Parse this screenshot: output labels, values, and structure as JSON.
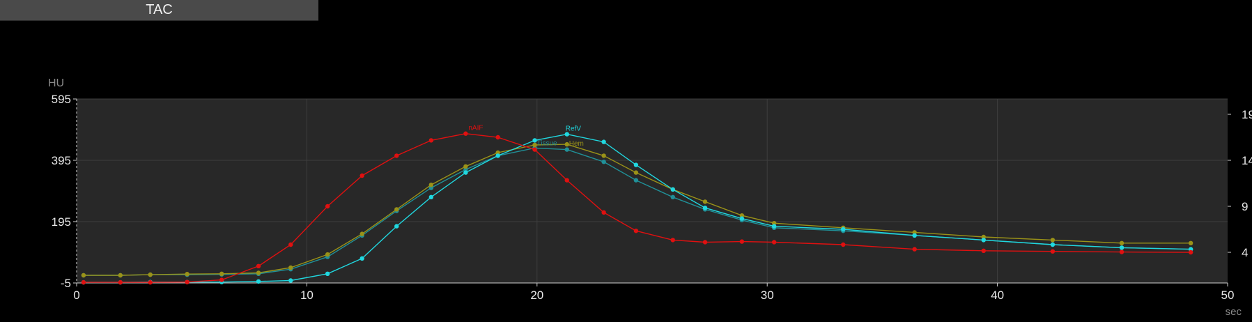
{
  "title": "TAC",
  "chart_data": {
    "type": "line",
    "xlabel": "sec",
    "ylabel": "HU",
    "xlim": [
      0,
      50
    ],
    "ylim": [
      -5,
      595
    ],
    "x_ticks": [
      0,
      10,
      20,
      30,
      40,
      50
    ],
    "y_ticks": [
      -5,
      195,
      395,
      595
    ],
    "y2_ticks": [
      "4",
      "9",
      "14",
      "19"
    ],
    "y2_tick_values": [
      95,
      245,
      395,
      545
    ],
    "grid": true,
    "series": [
      {
        "name": "nAIF",
        "color": "#e01010",
        "x": [
          0.3,
          1.9,
          3.2,
          4.8,
          6.3,
          7.9,
          9.3,
          10.9,
          12.4,
          13.9,
          15.4,
          16.9,
          18.3,
          19.9,
          21.3,
          22.9,
          24.3,
          25.9,
          27.3,
          28.9,
          30.3,
          33.3,
          36.4,
          39.4,
          42.4,
          45.4,
          48.4
        ],
        "y": [
          -3,
          -3,
          -3,
          -2,
          5,
          50,
          120,
          245,
          345,
          410,
          460,
          482,
          470,
          430,
          330,
          225,
          165,
          135,
          128,
          130,
          128,
          120,
          105,
          100,
          98,
          96,
          95
        ]
      },
      {
        "name": "RefV",
        "color": "#20d8e0",
        "x": [
          0.3,
          1.9,
          3.2,
          4.8,
          6.3,
          7.9,
          9.3,
          10.9,
          12.4,
          13.9,
          15.4,
          16.9,
          18.3,
          19.9,
          21.3,
          22.9,
          24.3,
          25.9,
          27.3,
          28.9,
          30.3,
          33.3,
          36.4,
          39.4,
          42.4,
          45.4,
          48.4
        ],
        "y": [
          -3,
          -3,
          -2,
          -2,
          -2,
          0,
          3,
          25,
          75,
          180,
          275,
          355,
          410,
          460,
          480,
          455,
          380,
          300,
          240,
          205,
          180,
          170,
          150,
          135,
          120,
          110,
          105
        ]
      },
      {
        "name": "Tissue",
        "color": "#209098",
        "x": [
          0.3,
          1.9,
          3.2,
          4.8,
          6.3,
          7.9,
          9.3,
          10.9,
          12.4,
          13.9,
          15.4,
          16.9,
          18.3,
          19.9,
          21.3,
          22.9,
          24.3,
          25.9,
          27.3,
          28.9,
          30.3,
          33.3,
          36.4,
          39.4,
          42.4,
          45.4,
          48.4
        ],
        "y": [
          20,
          20,
          22,
          22,
          23,
          25,
          40,
          80,
          150,
          230,
          305,
          365,
          410,
          435,
          430,
          390,
          330,
          275,
          235,
          200,
          175,
          165,
          150,
          135,
          120,
          110,
          105
        ]
      },
      {
        "name": "Hem",
        "color": "#9a9218",
        "x": [
          0.3,
          1.9,
          3.2,
          4.8,
          6.3,
          7.9,
          9.3,
          10.9,
          12.4,
          13.9,
          15.4,
          16.9,
          18.3,
          19.9,
          21.3,
          22.9,
          24.3,
          25.9,
          27.3,
          28.9,
          30.3,
          33.3,
          36.4,
          39.4,
          42.4,
          45.4,
          48.4
        ],
        "y": [
          20,
          20,
          22,
          24,
          25,
          28,
          45,
          88,
          155,
          235,
          315,
          375,
          420,
          445,
          447,
          410,
          355,
          300,
          260,
          215,
          190,
          175,
          160,
          145,
          135,
          125,
          125
        ]
      }
    ],
    "annotations": [
      {
        "text": "nAIF",
        "series": "nAIF",
        "color": "#e01010"
      },
      {
        "text": "RefV",
        "series": "RefV",
        "color": "#20d8e0"
      }
    ]
  }
}
